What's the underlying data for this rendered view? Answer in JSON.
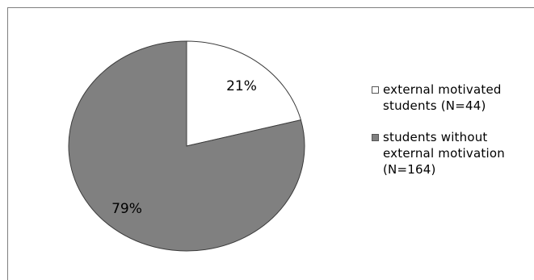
{
  "chart_data": {
    "type": "pie",
    "slices": [
      {
        "name": "external motivated students (N=44)",
        "legend_label": "external motivated\nstudents (N=44)",
        "value": 21,
        "label": "21%",
        "color": "#ffffff"
      },
      {
        "name": "students without external motivation (N=164)",
        "legend_label": "students without\nexternal motivation\n(N=164)",
        "value": 79,
        "label": "79%",
        "color": "#808080"
      }
    ],
    "legend": {
      "position": "right"
    },
    "outline_color": "#3c3c3c"
  }
}
